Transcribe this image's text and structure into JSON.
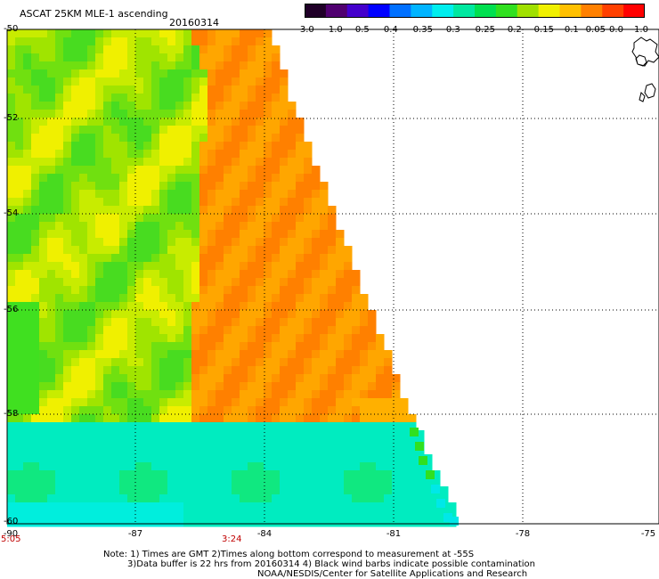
{
  "header": {
    "title": "ASCAT 25KM MLE-1 ascending",
    "date": "20160314"
  },
  "colorbar": {
    "colors": [
      "#200028",
      "#500070",
      "#4400cc",
      "#0000ff",
      "#0070ff",
      "#00b4ff",
      "#00eeee",
      "#00e8a0",
      "#00e050",
      "#30e020",
      "#a0e000",
      "#f0f000",
      "#ffc000",
      "#ff8000",
      "#ff4000",
      "#ff0000"
    ],
    "labels": [
      "-3.0",
      "-1.0",
      "-0.5",
      "-0.4",
      "-0.35",
      "-0.3",
      "-0.25",
      "-0.2",
      "-0.15",
      "-0.1",
      "-0.05",
      "0.0",
      "1.0"
    ]
  },
  "axes": {
    "lat_labels": [
      "-50",
      "-52",
      "-54",
      "-56",
      "-58",
      "-60"
    ],
    "lon_labels": [
      "-90",
      "-87",
      "-84",
      "-81",
      "-78",
      "-75"
    ]
  },
  "time_labels": {
    "left": "5:05",
    "middle": "3:24"
  },
  "notes": {
    "line1": "Note: 1) Times are GMT 2)Times along bottom correspond to measurement at -55S",
    "line2": "3)Data buffer is 22 hrs from 20160314 4) Black wind barbs indicate possible contamination",
    "line3": "NOAA/NESDIS/Center for Satellite Applications and Research"
  }
}
